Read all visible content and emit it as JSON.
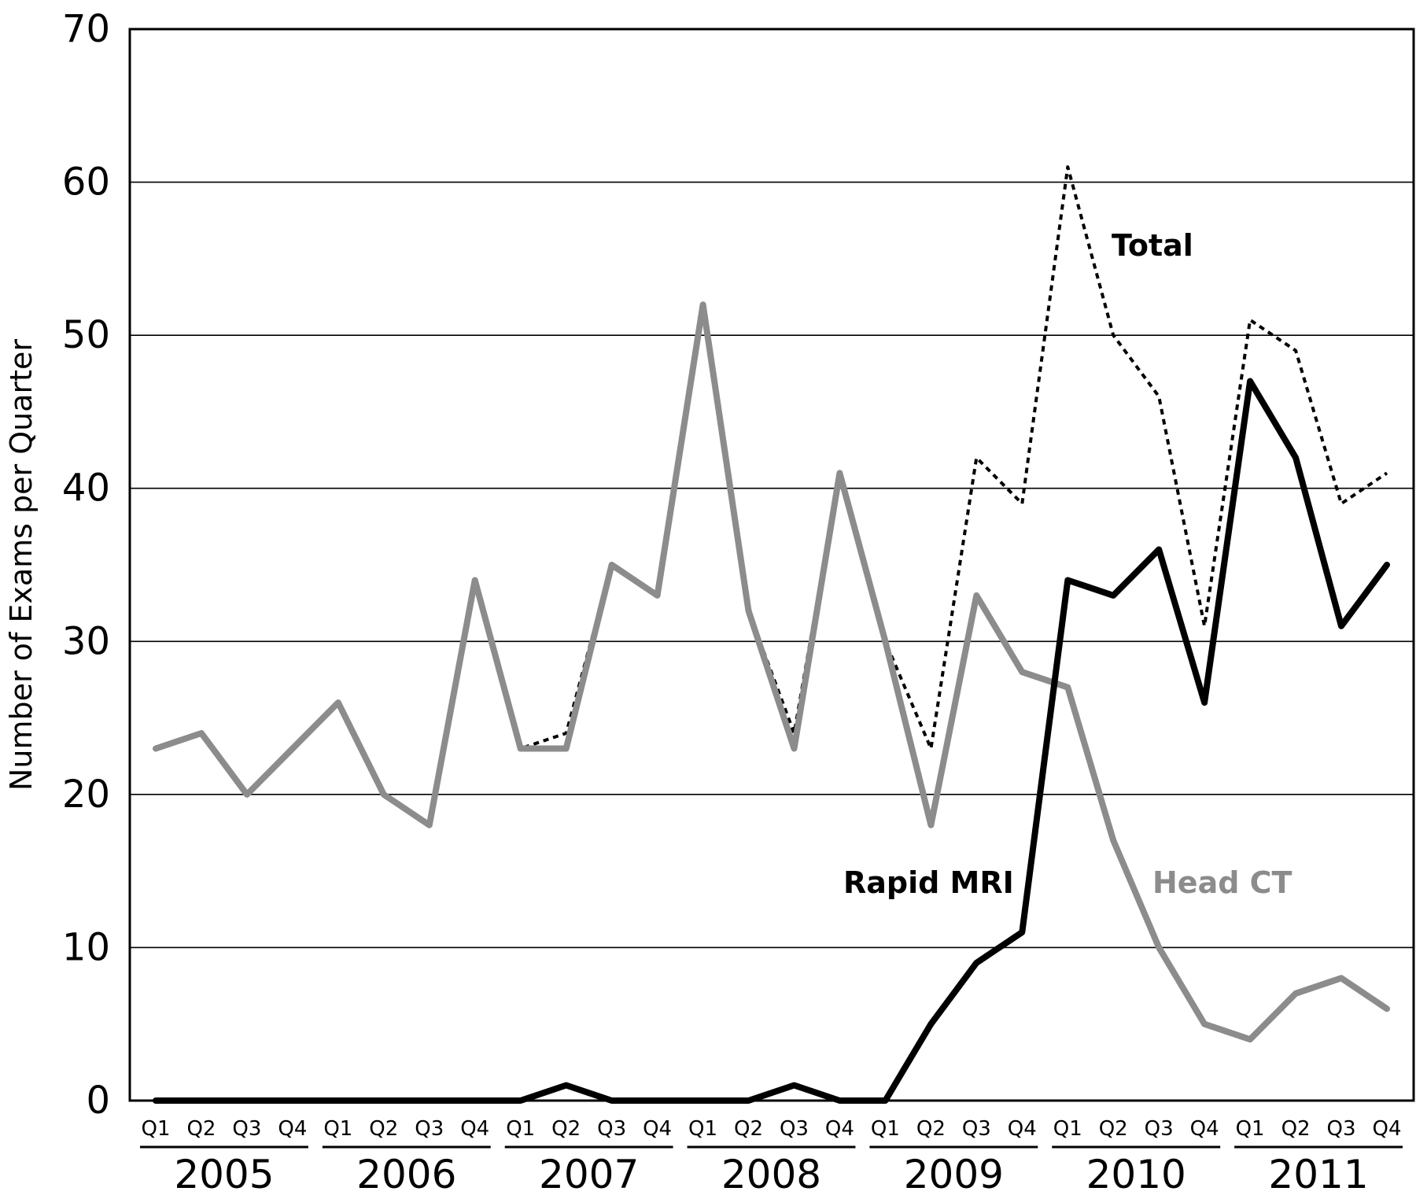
{
  "chart_data": {
    "type": "line",
    "title": "",
    "xlabel": "",
    "ylabel": "Number of Exams per Quarter",
    "ylim": [
      0,
      70
    ],
    "yticks": [
      0,
      10,
      20,
      30,
      40,
      50,
      60,
      70
    ],
    "grid": true,
    "years": [
      "2005",
      "2006",
      "2007",
      "2008",
      "2009",
      "2010",
      "2011"
    ],
    "quarters": [
      "Q1",
      "Q2",
      "Q3",
      "Q4"
    ],
    "series": [
      {
        "name": "Head CT",
        "color": "#8c8c8c",
        "style": "solid",
        "values": [
          23,
          24,
          20,
          23,
          26,
          20,
          18,
          34,
          23,
          23,
          35,
          33,
          52,
          32,
          23,
          41,
          30,
          18,
          33,
          28,
          27,
          17,
          10,
          5,
          4,
          7,
          8,
          6
        ]
      },
      {
        "name": "Rapid MRI",
        "color": "#000000",
        "style": "solid",
        "values": [
          0,
          0,
          0,
          0,
          0,
          0,
          0,
          0,
          0,
          1,
          0,
          0,
          0,
          0,
          1,
          0,
          0,
          5,
          9,
          11,
          34,
          33,
          36,
          26,
          47,
          42,
          31,
          35
        ]
      },
      {
        "name": "Total",
        "color": "#000000",
        "style": "dotted",
        "values": [
          23,
          24,
          20,
          23,
          26,
          20,
          18,
          34,
          23,
          24,
          35,
          33,
          52,
          32,
          24,
          41,
          30,
          23,
          42,
          39,
          61,
          50,
          46,
          31,
          51,
          49,
          39,
          41
        ]
      }
    ]
  }
}
